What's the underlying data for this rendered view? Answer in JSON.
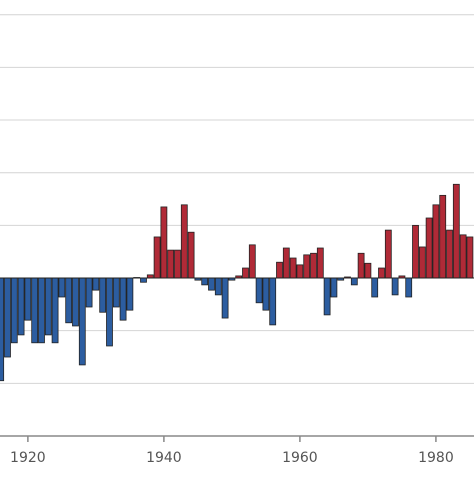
{
  "chart_data": {
    "type": "bar",
    "x": [
      1916,
      1917,
      1918,
      1919,
      1920,
      1921,
      1922,
      1923,
      1924,
      1925,
      1926,
      1927,
      1928,
      1929,
      1930,
      1931,
      1932,
      1933,
      1934,
      1935,
      1936,
      1937,
      1938,
      1939,
      1940,
      1941,
      1942,
      1943,
      1944,
      1945,
      1946,
      1947,
      1948,
      1949,
      1950,
      1951,
      1952,
      1953,
      1954,
      1955,
      1956,
      1957,
      1958,
      1959,
      1960,
      1961,
      1962,
      1963,
      1964,
      1965,
      1966,
      1967,
      1968,
      1969,
      1970,
      1971,
      1972,
      1973,
      1974,
      1975,
      1976,
      1977,
      1978,
      1979,
      1980,
      1981,
      1982,
      1983,
      1984,
      1985
    ],
    "values": [
      -1.95,
      -1.5,
      -1.23,
      -1.08,
      -0.8,
      -1.23,
      -1.23,
      -1.08,
      -1.23,
      -0.36,
      -0.85,
      -0.91,
      -1.65,
      -0.55,
      -0.23,
      -0.65,
      -1.29,
      -0.55,
      -0.8,
      -0.61,
      0.01,
      -0.08,
      0.06,
      0.78,
      1.35,
      0.53,
      0.53,
      1.39,
      0.87,
      -0.04,
      -0.13,
      -0.23,
      -0.32,
      -0.76,
      -0.04,
      0.04,
      0.19,
      0.63,
      -0.47,
      -0.61,
      -0.89,
      0.3,
      0.57,
      0.38,
      0.25,
      0.44,
      0.47,
      0.57,
      -0.7,
      -0.36,
      -0.04,
      0.02,
      -0.13,
      0.47,
      0.28,
      -0.36,
      0.19,
      0.91,
      -0.32,
      0.04,
      -0.36,
      1.0,
      0.59,
      1.14,
      1.39,
      1.57,
      0.91,
      1.78,
      0.82,
      0.78
    ],
    "positive_color": "#b02a37",
    "negative_color": "#2c5da0",
    "xlim": [
      1915.9,
      1985.6
    ],
    "xticks": [
      1920,
      1940,
      1960,
      1980
    ],
    "ylim": [
      -3,
      5.28
    ],
    "yticks": [
      -3,
      -2,
      -1,
      0,
      1,
      2,
      3,
      4,
      5
    ],
    "grid": true
  }
}
